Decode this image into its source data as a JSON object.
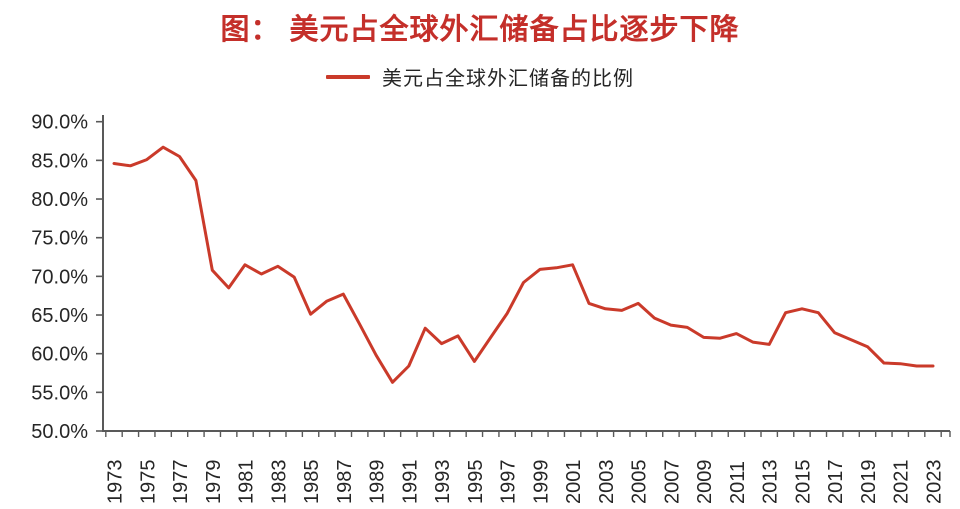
{
  "title": "图：  美元占全球外汇储备占比逐步下降",
  "legend": {
    "label": "美元占全球外汇储备的比例"
  },
  "colors": {
    "title": "#c42f2a",
    "line": "#ca3a2a",
    "axis": "#595959",
    "tick_label": "#262626"
  },
  "chart_data": {
    "type": "line",
    "title": "图：  美元占全球外汇储备占比逐步下降",
    "series": [
      {
        "name": "美元占全球外汇储备的比例",
        "x_start_year": 1973,
        "values": [
          84.6,
          84.3,
          85.1,
          86.7,
          85.5,
          82.4,
          70.8,
          68.5,
          71.5,
          70.3,
          71.3,
          69.9,
          65.1,
          66.8,
          67.7,
          63.8,
          59.8,
          56.3,
          58.4,
          63.3,
          61.3,
          62.3,
          59.0,
          62.1,
          65.2,
          69.2,
          70.9,
          71.1,
          71.5,
          66.5,
          65.8,
          65.6,
          66.5,
          64.6,
          63.7,
          63.4,
          62.1,
          62.0,
          62.6,
          61.5,
          61.2,
          65.3,
          65.8,
          65.3,
          62.7,
          61.8,
          60.9,
          58.8,
          58.7,
          58.4,
          58.4
        ]
      }
    ],
    "x_range": [
      1973,
      2023
    ],
    "xtick_labels": [
      "1973",
      "1975",
      "1977",
      "1979",
      "1981",
      "1983",
      "1985",
      "1987",
      "1989",
      "1991",
      "1993",
      "1995",
      "1997",
      "1999",
      "2001",
      "2003",
      "2005",
      "2007",
      "2009",
      "2011",
      "2013",
      "2015",
      "2017",
      "2019",
      "2021",
      "2023"
    ],
    "ytick_labels": [
      "90.0%",
      "85.0%",
      "80.0%",
      "75.0%",
      "70.0%",
      "65.0%",
      "60.0%",
      "55.0%",
      "50.0%"
    ],
    "ylim": [
      50,
      90
    ],
    "ytick_step": 5,
    "grid": false,
    "legend_position": "top-center"
  }
}
